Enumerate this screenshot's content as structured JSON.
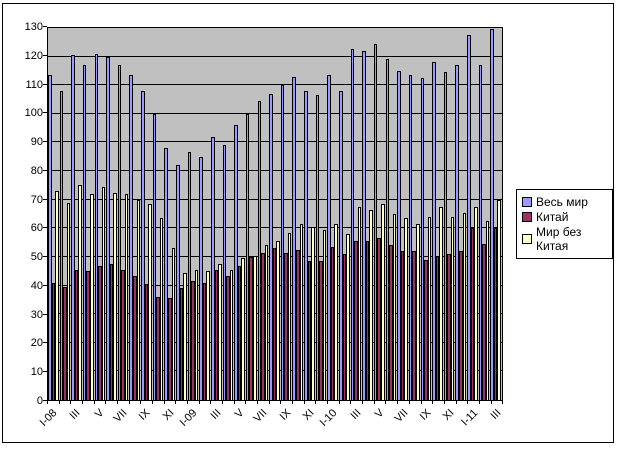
{
  "chart_data": {
    "type": "bar",
    "title": "",
    "xlabel": "",
    "ylabel": "",
    "categories": [
      "I-08",
      "",
      "III",
      "",
      "V",
      "",
      "VII",
      "",
      "IX",
      "",
      "XI",
      "",
      "I-09",
      "",
      "III",
      "",
      "V",
      "",
      "VII",
      "",
      "IX",
      "",
      "XI",
      "",
      "I-10",
      "",
      "III",
      "",
      "V",
      "",
      "VII",
      "",
      "IX",
      "",
      "XI",
      "",
      "I-11",
      "",
      "III"
    ],
    "series": [
      {
        "key": "world",
        "name": "Весь мир",
        "color": "#9999FF",
        "values": [
          113.5,
          108,
          120.5,
          117,
          121,
          120,
          117,
          113.5,
          108,
          100,
          88,
          82,
          86.5,
          85,
          92,
          89,
          96,
          100,
          104.5,
          107,
          110,
          113,
          108,
          106.5,
          113.5,
          108,
          122.5,
          122,
          124.5,
          119,
          115,
          113.5,
          112.5,
          118,
          114.5,
          117,
          127.5,
          117,
          129.5
        ]
      },
      {
        "key": "china",
        "name": "Китай",
        "color": "#993366",
        "values": [
          41,
          39.5,
          45.5,
          45,
          47,
          47.5,
          45.5,
          43.5,
          40.5,
          36,
          35.5,
          39,
          41.5,
          41,
          45.5,
          43.5,
          47,
          50,
          51.5,
          53,
          51.5,
          52.5,
          48.5,
          48.5,
          53.5,
          51,
          55.5,
          55.5,
          56.5,
          54,
          52,
          52,
          49,
          50.5,
          51,
          52,
          60,
          54.5,
          60
        ]
      },
      {
        "key": "world-ex-china",
        "name": "Мир без Китая",
        "color": "#FFFFCC",
        "values": [
          73,
          69,
          75,
          72,
          74.5,
          72.5,
          72,
          70,
          68.5,
          63.5,
          53,
          44.5,
          45.5,
          45,
          47.5,
          45.5,
          49.5,
          50.5,
          54,
          55.5,
          58.5,
          61.5,
          60.5,
          59.5,
          61.5,
          58,
          67.5,
          66.5,
          68.5,
          65,
          63.5,
          61.5,
          64,
          67.5,
          64,
          65.5,
          67.5,
          62.5,
          70
        ]
      }
    ],
    "ylim": [
      0,
      130
    ],
    "ytick_step": 10,
    "y_tick_labels": [
      "0",
      "10",
      "20",
      "30",
      "40",
      "50",
      "60",
      "70",
      "80",
      "90",
      "100",
      "110",
      "120",
      "130"
    ],
    "grid": "on",
    "legend_position": "right",
    "plot_background": "#C0C0C0",
    "gridline_color": "#000000",
    "bar_border_color": "#000000"
  }
}
